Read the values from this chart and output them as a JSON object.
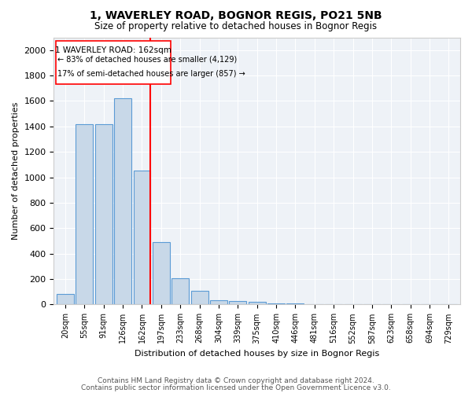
{
  "title": "1, WAVERLEY ROAD, BOGNOR REGIS, PO21 5NB",
  "subtitle": "Size of property relative to detached houses in Bognor Regis",
  "xlabel": "Distribution of detached houses by size in Bognor Regis",
  "ylabel": "Number of detached properties",
  "bins": [
    "20sqm",
    "55sqm",
    "91sqm",
    "126sqm",
    "162sqm",
    "197sqm",
    "233sqm",
    "268sqm",
    "304sqm",
    "339sqm",
    "375sqm",
    "410sqm",
    "446sqm",
    "481sqm",
    "516sqm",
    "552sqm",
    "587sqm",
    "623sqm",
    "658sqm",
    "694sqm",
    "729sqm"
  ],
  "heights": [
    80,
    1420,
    1420,
    1620,
    1050,
    490,
    205,
    105,
    35,
    30,
    20,
    10,
    8,
    5,
    4,
    3,
    2,
    2,
    2,
    2,
    2
  ],
  "bar_color": "#c8d8e8",
  "bar_edge_color": "#5b9bd5",
  "red_line_bin_index": 4,
  "annotation_text1": "1 WAVERLEY ROAD: 162sqm",
  "annotation_text2": "← 83% of detached houses are smaller (4,129)",
  "annotation_text3": "17% of semi-detached houses are larger (857) →",
  "footer1": "Contains HM Land Registry data © Crown copyright and database right 2024.",
  "footer2": "Contains public sector information licensed under the Open Government Licence v3.0.",
  "ylim": [
    0,
    2100
  ],
  "background_color": "#eef2f7"
}
